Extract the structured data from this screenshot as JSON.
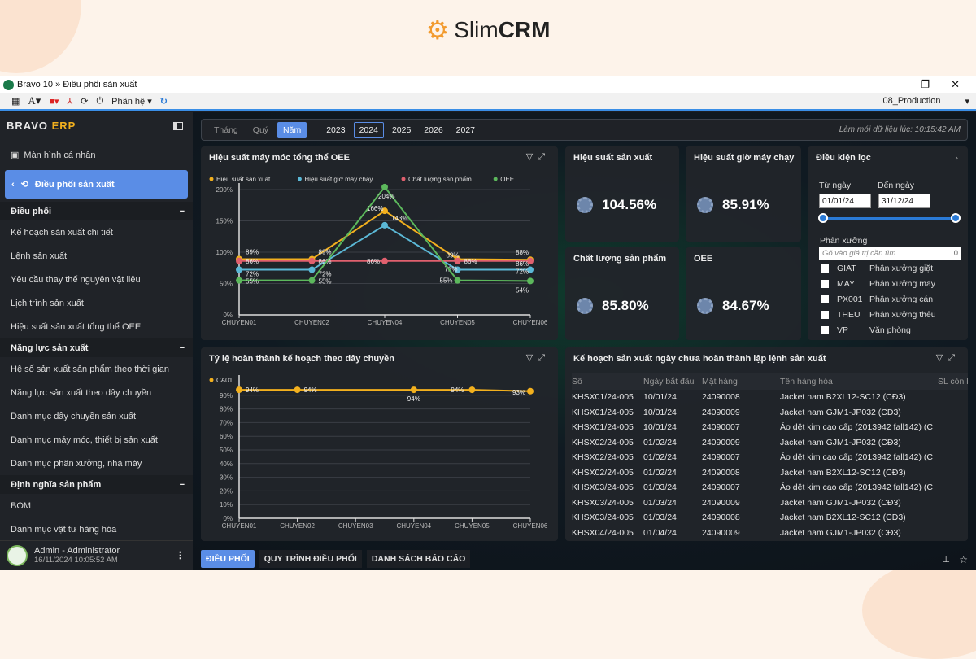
{
  "brand": {
    "name_light": "Slim",
    "name_bold": "CRM"
  },
  "window": {
    "title": "Bravo 10 » Điều phối sản xuất",
    "minimize": "—",
    "maximize": "❐",
    "close": "✕"
  },
  "toolbar": {
    "module_menu": "Phân hệ ▾",
    "database": "08_Production",
    "database_arrow": "▾"
  },
  "sidebar": {
    "logo_a": "BRAVO ",
    "logo_b": "ERP",
    "personal": "Màn hình cá nhân",
    "active": "Điều phối sản xuất",
    "sections": [
      {
        "title": "Điều phối",
        "items": [
          "Kế hoạch sản xuất chi tiết",
          "Lệnh sản xuất",
          "Yêu cầu thay thế nguyên vật liệu",
          "Lịch trình sản xuất",
          "Hiệu suất sản xuất tổng thể OEE"
        ]
      },
      {
        "title": "Năng lực sản xuất",
        "items": [
          "Hệ số sản xuất sản phẩm theo thời gian",
          "Năng lực sản xuất theo dây chuyền",
          "Danh mục dây chuyền sản xuất",
          "Danh mục máy móc, thiết bị sản xuất",
          "Danh mục phân xưởng, nhà máy"
        ]
      },
      {
        "title": "Định nghĩa sản phẩm",
        "items": [
          "BOM",
          "Danh mục vật tư hàng hóa"
        ]
      }
    ],
    "user": {
      "name": "Admin - Administrator",
      "time": "16/11/2024 10:05:52 AM"
    }
  },
  "period": {
    "tabs": [
      "Tháng",
      "Quý",
      "Năm"
    ],
    "selected_tab": "Năm",
    "years": [
      "2023",
      "2024",
      "2025",
      "2026",
      "2027"
    ],
    "selected_year": "2024",
    "refresh": "Làm mới dữ liệu lúc: 10:15:42 AM"
  },
  "kpis": [
    {
      "label": "Hiệu suất sản xuất",
      "value": "104.56%"
    },
    {
      "label": "Hiệu suất giờ máy chạy",
      "value": "85.91%"
    },
    {
      "label": "Chất lượng sản phẩm",
      "value": "85.80%"
    },
    {
      "label": "OEE",
      "value": "84.67%"
    }
  ],
  "filter": {
    "title": "Điều kiện lọc",
    "from_label": "Từ ngày",
    "from": "01/01/24",
    "to_label": "Đến ngày",
    "to": "31/12/24",
    "range_fraction": [
      0,
      1
    ],
    "workshop_label": "Phân xưởng",
    "search_placeholder": "Gõ vào giá trị cần tìm",
    "search_count": "0",
    "workshops": [
      {
        "code": "GIAT",
        "name": "Phân xưởng giặt"
      },
      {
        "code": "MAY",
        "name": "Phân xưởng may"
      },
      {
        "code": "PX001",
        "name": "Phân xưởng cán"
      },
      {
        "code": "THEU",
        "name": "Phân xưởng thêu"
      },
      {
        "code": "VP",
        "name": "Văn phòng"
      }
    ]
  },
  "table": {
    "title": "Kế hoạch sản xuất ngày chưa hoàn thành lập lệnh sản xuất",
    "columns": [
      "Số",
      "Ngày bắt đầu",
      "Mặt hàng",
      "Tên hàng hóa",
      "SL còn l"
    ],
    "rows": [
      [
        "KHSX01/24-005",
        "10/01/24",
        "24090008",
        "Jacket nam B2XL12-SC12 (CĐ3)"
      ],
      [
        "KHSX01/24-005",
        "10/01/24",
        "24090009",
        "Jacket nam GJM1-JP032 (CĐ3)"
      ],
      [
        "KHSX01/24-005",
        "10/01/24",
        "24090007",
        "Áo dệt kim cao cấp (2013942 fall142) (C"
      ],
      [
        "KHSX02/24-005",
        "01/02/24",
        "24090009",
        "Jacket nam GJM1-JP032 (CĐ3)"
      ],
      [
        "KHSX02/24-005",
        "01/02/24",
        "24090007",
        "Áo dệt kim cao cấp (2013942 fall142) (C"
      ],
      [
        "KHSX02/24-005",
        "01/02/24",
        "24090008",
        "Jacket nam B2XL12-SC12 (CĐ3)"
      ],
      [
        "KHSX03/24-005",
        "01/03/24",
        "24090007",
        "Áo dệt kim cao cấp (2013942 fall142) (C"
      ],
      [
        "KHSX03/24-005",
        "01/03/24",
        "24090009",
        "Jacket nam GJM1-JP032 (CĐ3)"
      ],
      [
        "KHSX03/24-005",
        "01/03/24",
        "24090008",
        "Jacket nam B2XL12-SC12 (CĐ3)"
      ],
      [
        "KHSX04/24-005",
        "01/04/24",
        "24090009",
        "Jacket nam GJM1-JP032 (CĐ3)"
      ]
    ]
  },
  "bottom_tabs": [
    "ĐIỀU PHỐI",
    "QUY TRÌNH ĐIỀU PHỐI",
    "DANH SÁCH BÁO CÁO"
  ],
  "chart_data": [
    {
      "type": "line",
      "title": "Hiệu suất máy móc tổng thể OEE",
      "categories": [
        "CHUYEN01",
        "CHUYEN02",
        "CHUYEN04",
        "CHUYEN05",
        "CHUYEN06"
      ],
      "ylim": [
        0,
        200
      ],
      "yticks": [
        "0%",
        "50%",
        "100%",
        "150%",
        "200%"
      ],
      "grid": true,
      "legend": "top-left",
      "series": [
        {
          "name": "Hiệu suất sản xuất",
          "color": "#f2b01e",
          "values": [
            89,
            89,
            166,
            89,
            88
          ]
        },
        {
          "name": "Hiệu suất giờ máy chạy",
          "color": "#5bb8d6",
          "values": [
            72,
            72,
            143,
            72,
            72
          ]
        },
        {
          "name": "Chất lượng sản phẩm",
          "color": "#e0606e",
          "values": [
            86,
            86,
            86,
            86,
            86
          ]
        },
        {
          "name": "OEE",
          "color": "#5cb85c",
          "values": [
            55,
            55,
            204,
            55,
            54
          ]
        }
      ]
    },
    {
      "type": "line",
      "title": "Tỷ lệ hoàn thành kế hoạch theo dây chuyền",
      "categories": [
        "CHUYEN01",
        "CHUYEN02",
        "CHUYEN03",
        "CHUYEN04",
        "CHUYEN05",
        "CHUYEN06"
      ],
      "ylim": [
        0,
        100
      ],
      "yticks": [
        "0%",
        "10%",
        "20%",
        "30%",
        "40%",
        "50%",
        "60%",
        "70%",
        "80%",
        "90%"
      ],
      "grid": true,
      "legend": "top-left",
      "series": [
        {
          "name": "CA01",
          "color": "#f2b01e",
          "values": [
            94,
            94,
            null,
            94,
            94,
            93
          ]
        }
      ]
    }
  ]
}
